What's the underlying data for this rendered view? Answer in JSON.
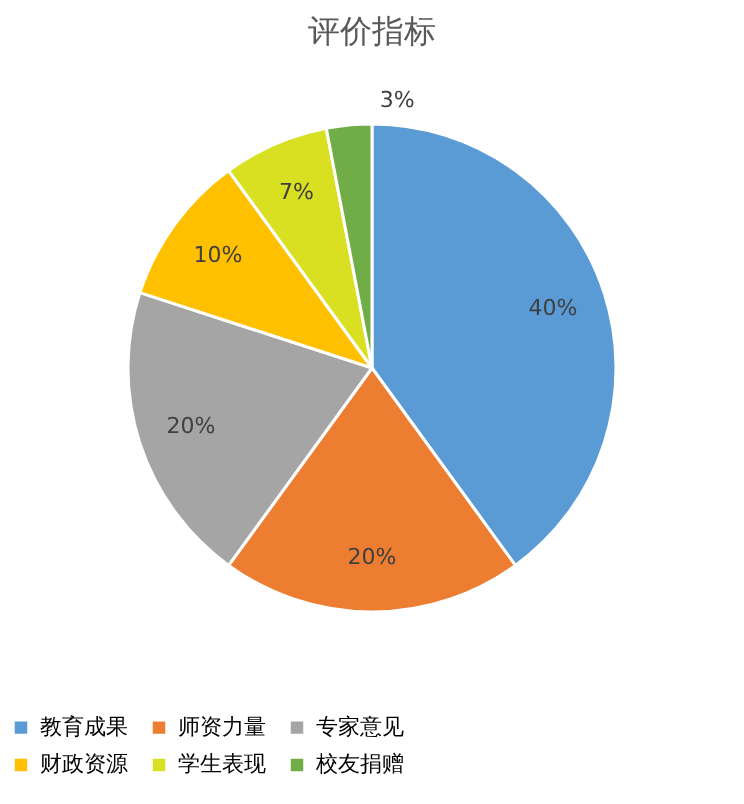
{
  "chart_data": {
    "type": "pie",
    "title": "评价指标",
    "categories": [
      "教育成果",
      "师资力量",
      "专家意见",
      "财政资源",
      "学生表现",
      "校友捐赠"
    ],
    "values": [
      40,
      20,
      20,
      10,
      7,
      3
    ],
    "colors": [
      "#5b9bd5",
      "#ed7d31",
      "#a5a5a5",
      "#ffc000",
      "#d9e021",
      "#70ad47"
    ],
    "value_labels": [
      "40%",
      "20%",
      "20%",
      "10%",
      "7%",
      "3%"
    ],
    "legend": "bottom"
  }
}
